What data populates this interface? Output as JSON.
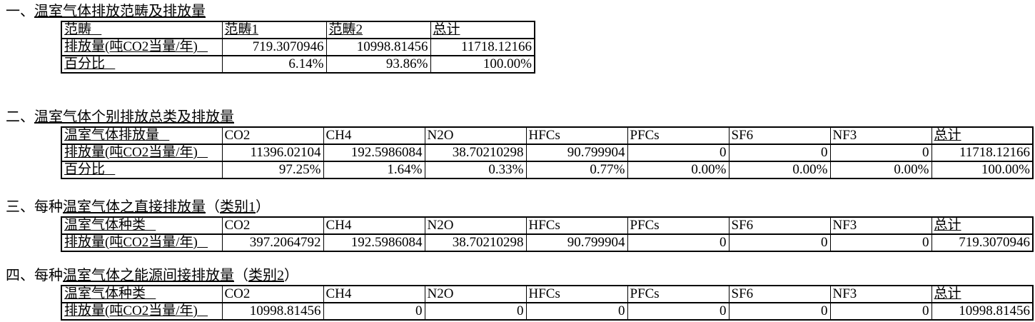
{
  "document": {
    "background": "#ffffff",
    "text_color": "#000000",
    "border_color": "#000000"
  },
  "sections": [
    {
      "title_parts": [
        {
          "text": "一、",
          "underlined": false
        },
        {
          "text": "温室气体排放范畴及排放量",
          "underlined": true
        }
      ],
      "table": {
        "header": [
          "范畴",
          "范畴1",
          "范畴2",
          "总计"
        ],
        "rows": [
          [
            "排放量(吨CO2当量/年)",
            "719.3070946",
            "10998.81456",
            "11718.12166"
          ],
          [
            "百分比",
            "6.14%",
            "93.86%",
            "100.00%"
          ]
        ]
      }
    },
    {
      "title_parts": [
        {
          "text": "二、",
          "underlined": false
        },
        {
          "text": "温室气体个别排放总类及排放量",
          "underlined": true
        }
      ],
      "table": {
        "header": [
          "温室气体排放量",
          "CO2",
          "CH4",
          "N2O",
          "HFCs",
          "PFCs",
          "SF6",
          "NF3",
          "总计"
        ],
        "rows": [
          [
            "排放量(吨CO2当量/年)",
            "11396.02104",
            "192.5986084",
            "38.70210298",
            "90.799904",
            "0",
            "0",
            "0",
            "11718.12166"
          ],
          [
            "百分比",
            "97.25%",
            "1.64%",
            "0.33%",
            "0.77%",
            "0.00%",
            "0.00%",
            "0.00%",
            "100.00%"
          ]
        ]
      }
    },
    {
      "title_parts": [
        {
          "text": "三、每种",
          "underlined": false
        },
        {
          "text": "温室气体之直接排放量",
          "underlined": true
        },
        {
          "text": "（",
          "underlined": false
        },
        {
          "text": "类别1",
          "underlined": true
        },
        {
          "text": "）",
          "underlined": false
        }
      ],
      "table": {
        "header": [
          "温室气体种类",
          "CO2",
          "CH4",
          "N2O",
          "HFCs",
          "PFCs",
          "SF6",
          "NF3",
          "总计"
        ],
        "rows": [
          [
            "排放量(吨CO2当量/年)",
            "397.2064792",
            "192.5986084",
            "38.70210298",
            "90.799904",
            "0",
            "0",
            "0",
            "719.3070946"
          ]
        ]
      }
    },
    {
      "title_parts": [
        {
          "text": "四、每种",
          "underlined": false
        },
        {
          "text": "温室气体之能源间接排放量",
          "underlined": true
        },
        {
          "text": "（",
          "underlined": false
        },
        {
          "text": "类别2",
          "underlined": true
        },
        {
          "text": "）",
          "underlined": false
        }
      ],
      "table": {
        "header": [
          "温室气体种类",
          "CO2",
          "CH4",
          "N2O",
          "HFCs",
          "PFCs",
          "SF6",
          "NF3",
          "总计"
        ],
        "rows": [
          [
            "排放量(吨CO2当量/年)",
            "10998.81456",
            "0",
            "0",
            "0",
            "0",
            "0",
            "0",
            "10998.81456"
          ]
        ]
      }
    }
  ]
}
